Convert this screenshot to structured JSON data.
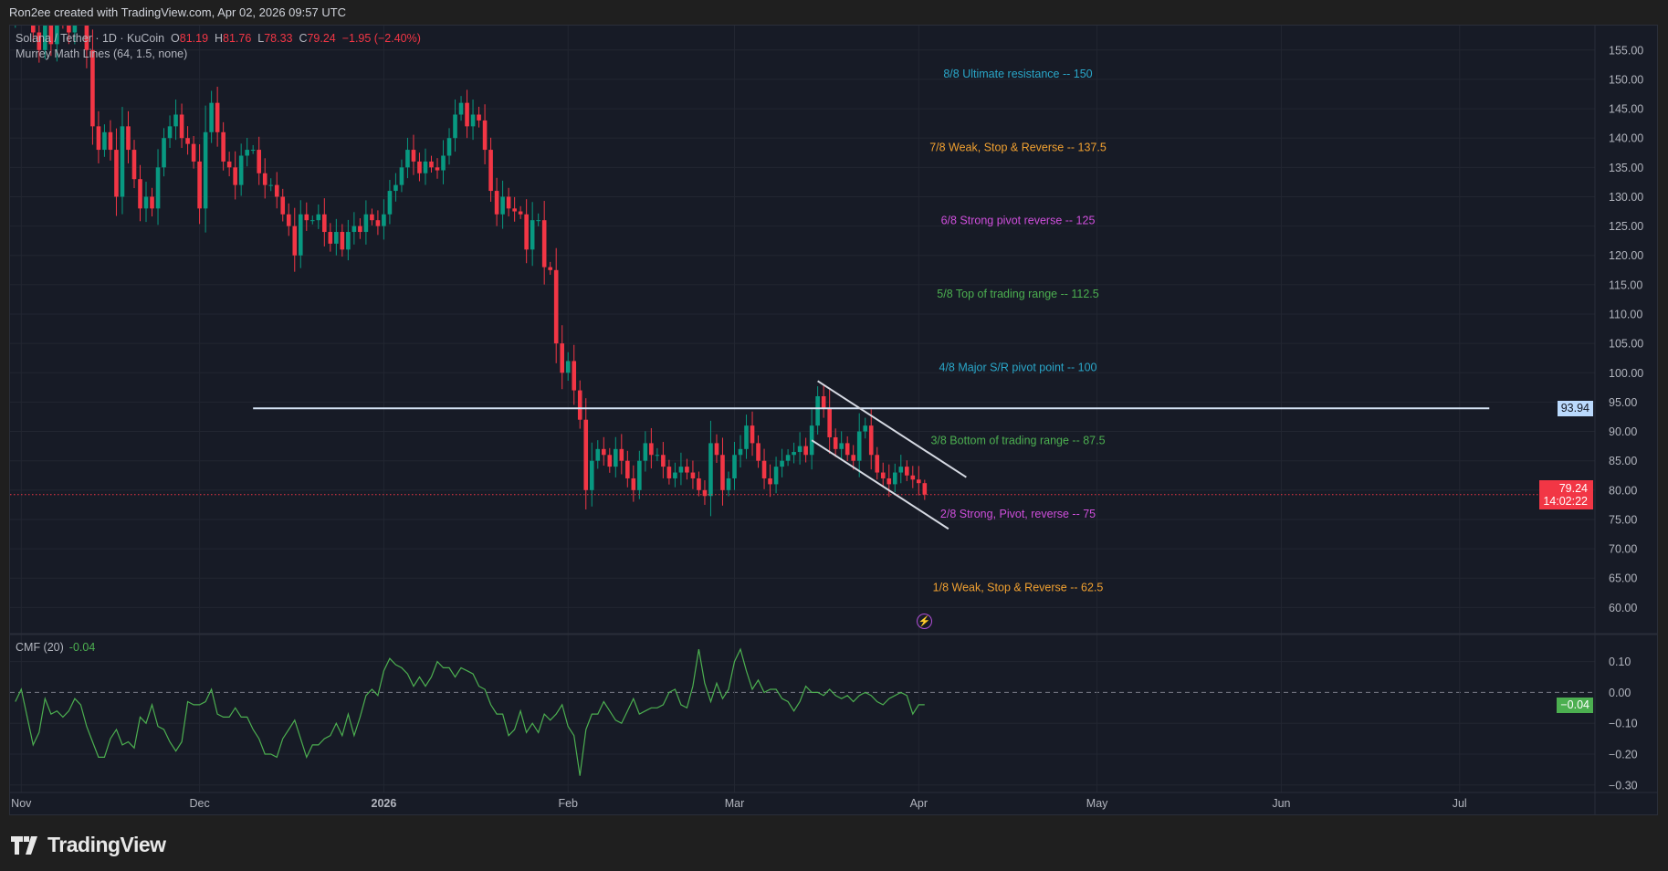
{
  "attribution": "Ron2ee created with TradingView.com, Apr 02, 2026 09:57 UTC",
  "legend": {
    "symbol": "Solana / Tether · 1D · KuCoin",
    "o_label": "O",
    "o": "81.19",
    "h_label": "H",
    "h": "81.76",
    "l_label": "L",
    "l": "78.33",
    "c_label": "C",
    "c": "79.24",
    "change": "−1.95 (−2.40%)",
    "indicator": "Murrey Math Lines (64, 1.5, none)"
  },
  "cmf_legend": {
    "name": "CMF (20)",
    "value": "-0.04"
  },
  "price_badge": {
    "price": "79.24",
    "countdown": "14:02:22",
    "color": "#f23645"
  },
  "line_badge": {
    "price": "93.94"
  },
  "cmf_badge": {
    "value": "−0.04",
    "color": "#4caf50"
  },
  "footer": {
    "logo_text": "TradingView"
  },
  "lightning_icon": "lightning-icon",
  "chart_data": {
    "type": "candlestick",
    "colors": {
      "up": "#089981",
      "down": "#f23645",
      "cmf": "#4caf50"
    },
    "price_ticks": [
      155,
      150,
      145,
      140,
      135,
      130,
      125,
      120,
      115,
      110,
      105,
      100,
      95,
      90,
      85,
      80,
      75,
      70,
      65,
      60
    ],
    "ylim": [
      59,
      159
    ],
    "cmf_ticks": [
      "0.10",
      "0.00",
      "−0.10",
      "−0.20",
      "−0.30"
    ],
    "cmf_tick_values": [
      0.1,
      0,
      -0.1,
      -0.2,
      -0.3
    ],
    "x_ticks": [
      {
        "date": "2025-11-01",
        "label": "Nov"
      },
      {
        "date": "2025-12-01",
        "label": "Dec"
      },
      {
        "date": "2026-01-01",
        "label": "2026"
      },
      {
        "date": "2026-02-01",
        "label": "Feb"
      },
      {
        "date": "2026-03-01",
        "label": "Mar"
      },
      {
        "date": "2026-04-01",
        "label": "Apr"
      },
      {
        "date": "2026-05-01",
        "label": "May"
      },
      {
        "date": "2026-06-01",
        "label": "Jun"
      },
      {
        "date": "2026-07-01",
        "label": "Jul"
      }
    ],
    "candles": {
      "start": "2025-10-31",
      "first_open": 160,
      "close": [
        163,
        166,
        162,
        158,
        155,
        160,
        156,
        162,
        160,
        158,
        166,
        162,
        155,
        142,
        138,
        141,
        138,
        130,
        142,
        138,
        133,
        128,
        130,
        128,
        135,
        140,
        142,
        144,
        140,
        139,
        136,
        128,
        141,
        146,
        141,
        136,
        135,
        132,
        137,
        138,
        138,
        134,
        132,
        132,
        130,
        127,
        125,
        120,
        127,
        126,
        126,
        127,
        124,
        122,
        124,
        121,
        124,
        125,
        124,
        127,
        126,
        125,
        127,
        131,
        132,
        135,
        138,
        136,
        134,
        136,
        135,
        134.5,
        137,
        140,
        144,
        146,
        142,
        144,
        143,
        138,
        131,
        127,
        130,
        128,
        127.5,
        127,
        121,
        126,
        126,
        118,
        117.5,
        105,
        100,
        102,
        97,
        92,
        80,
        85,
        87,
        86,
        84,
        87,
        85,
        82,
        80,
        85,
        88,
        86,
        86,
        84,
        82,
        83,
        84,
        83,
        82,
        80,
        79,
        88,
        86,
        80,
        82,
        86,
        87,
        91,
        88,
        85,
        82,
        81,
        84,
        85,
        86,
        86.5,
        87.5,
        86,
        91,
        96,
        94,
        89,
        87,
        88,
        86,
        85,
        90,
        91,
        86,
        83,
        82,
        81,
        83,
        84,
        82.5,
        81.8,
        81.19,
        79.24
      ],
      "last": {
        "open": 81.19,
        "high": 81.76,
        "low": 78.33,
        "close": 79.24
      }
    },
    "murrey_levels": [
      {
        "label": "8/8 Ultimate resistance --  150",
        "price": 150,
        "color": "#2aa7c9"
      },
      {
        "label": "7/8 Weak, Stop & Reverse --  137.5",
        "price": 137.5,
        "color": "#f0a030"
      },
      {
        "label": "6/8 Strong pivot reverse --  125",
        "price": 125,
        "color": "#cf4fdc"
      },
      {
        "label": "5/8 Top of trading range --  112.5",
        "price": 112.5,
        "color": "#4caf50"
      },
      {
        "label": "4/8 Major S/R pivot point --  100",
        "price": 100,
        "color": "#2aa7c9"
      },
      {
        "label": "3/8 Bottom of trading range --  87.5",
        "price": 87.5,
        "color": "#4caf50"
      },
      {
        "label": "2/8 Strong, Pivot, reverse --  75",
        "price": 75,
        "color": "#cf4fdc"
      },
      {
        "label": "1/8 Weak, Stop & Reverse --  62.5",
        "price": 62.5,
        "color": "#f0a030"
      }
    ],
    "drawings": [
      {
        "type": "horizontal",
        "price": 93.94,
        "from": "2025-12-10",
        "to": "2026-07-06",
        "color": "#d6e4f5"
      },
      {
        "type": "trend",
        "from": [
          "2026-03-15",
          98.6
        ],
        "to": [
          "2026-04-09",
          82.2
        ],
        "color": "#d6dae3"
      },
      {
        "type": "trend",
        "from": [
          "2026-03-14",
          88.5
        ],
        "to": [
          "2026-04-06",
          73.4
        ],
        "color": "#d6dae3"
      }
    ],
    "cmf": {
      "start": "2025-10-31",
      "values": [
        -0.03,
        0.01,
        -0.08,
        -0.17,
        -0.13,
        -0.02,
        -0.07,
        -0.06,
        -0.08,
        -0.06,
        -0.02,
        -0.04,
        -0.11,
        -0.16,
        -0.21,
        -0.21,
        -0.15,
        -0.12,
        -0.17,
        -0.16,
        -0.18,
        -0.08,
        -0.1,
        -0.04,
        -0.11,
        -0.12,
        -0.16,
        -0.19,
        -0.16,
        -0.03,
        -0.04,
        -0.04,
        -0.03,
        0.01,
        -0.07,
        -0.08,
        -0.08,
        -0.05,
        -0.08,
        -0.08,
        -0.12,
        -0.15,
        -0.2,
        -0.2,
        -0.21,
        -0.15,
        -0.12,
        -0.09,
        -0.15,
        -0.21,
        -0.17,
        -0.17,
        -0.15,
        -0.14,
        -0.1,
        -0.14,
        -0.07,
        -0.14,
        -0.08,
        -0.01,
        0.01,
        -0.01,
        0.07,
        0.11,
        0.09,
        0.08,
        0.06,
        0.02,
        0.05,
        0.02,
        0.05,
        0.1,
        0.08,
        0.08,
        0.05,
        0.08,
        0.07,
        0.06,
        0.02,
        0.01,
        -0.04,
        -0.07,
        -0.07,
        -0.14,
        -0.12,
        -0.06,
        -0.13,
        -0.1,
        -0.13,
        -0.07,
        -0.09,
        -0.07,
        -0.04,
        -0.11,
        -0.14,
        -0.27,
        -0.12,
        -0.07,
        -0.07,
        -0.03,
        -0.06,
        -0.09,
        -0.1,
        -0.06,
        -0.02,
        -0.07,
        -0.06,
        -0.05,
        -0.05,
        -0.04,
        0.0,
        0.01,
        -0.04,
        -0.05,
        0.02,
        0.14,
        0.03,
        -0.03,
        0.03,
        -0.02,
        0.01,
        0.1,
        0.14,
        0.07,
        0.01,
        0.04,
        0.0,
        0.01,
        0.01,
        -0.02,
        -0.03,
        -0.06,
        -0.03,
        0.02,
        0.0,
        0.0,
        -0.01,
        0.01,
        -0.01,
        -0.02,
        -0.01,
        -0.03,
        -0.01,
        0.0,
        -0.01,
        -0.03,
        -0.04,
        -0.02,
        -0.01,
        0.0,
        -0.01,
        -0.07,
        -0.04,
        -0.04
      ]
    }
  }
}
